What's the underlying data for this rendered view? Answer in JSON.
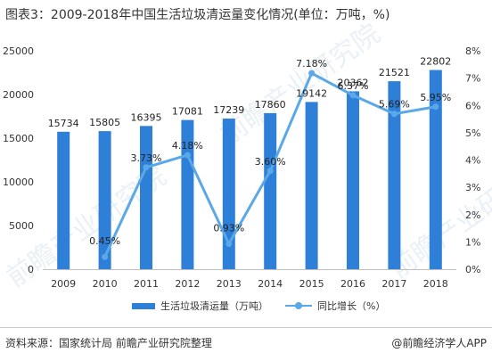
{
  "title": "图表3：2009-2018年中国生活垃圾清运量变化情况(单位：万吨，%)",
  "source": "资料来源：国家统计局 前瞻产业研究院整理",
  "brand": "@前瞻经济学人APP",
  "watermarks": [
    "前瞻产业研究院",
    "前瞻产业研究院",
    "前瞻产业研究院"
  ],
  "chart_data": {
    "type": "bar",
    "title": "图表3：2009-2018年中国生活垃圾清运量变化情况(单位：万吨，%)",
    "categories": [
      "2009",
      "2010",
      "2011",
      "2012",
      "2013",
      "2014",
      "2015",
      "2016",
      "2017",
      "2018"
    ],
    "series": [
      {
        "name": "生活垃圾清运量（万吨）",
        "type": "bar",
        "axis": "left",
        "values": [
          15734,
          15805,
          16395,
          17081,
          17239,
          17860,
          19142,
          20362,
          21521,
          22802
        ],
        "labels": [
          "15734",
          "15805",
          "16395",
          "17081",
          "17239",
          "17860",
          "19142",
          "20362",
          "21521",
          "22802"
        ]
      },
      {
        "name": "同比增长（%）",
        "type": "line",
        "axis": "right",
        "values": [
          null,
          0.45,
          3.73,
          4.18,
          0.93,
          3.6,
          7.18,
          6.37,
          5.69,
          5.95
        ],
        "labels": [
          "",
          "0.45%",
          "3.73%",
          "4.18%",
          "0.93%",
          "3.60%",
          "7.18%",
          "6.37%",
          "5.69%",
          "5.95%"
        ]
      }
    ],
    "left_axis": {
      "ylim": [
        0,
        25000
      ],
      "ticks": [
        "0",
        "5000",
        "10000",
        "15000",
        "20000",
        "25000"
      ]
    },
    "right_axis": {
      "ylim": [
        0,
        8
      ],
      "ticks": [
        "0%",
        "1%",
        "2%",
        "3%",
        "4%",
        "5%",
        "6%",
        "7%",
        "8%"
      ]
    },
    "legend": "bottom",
    "grid": false,
    "colors": {
      "bar": "#2e7fd8",
      "line": "#5aa8e8"
    }
  }
}
